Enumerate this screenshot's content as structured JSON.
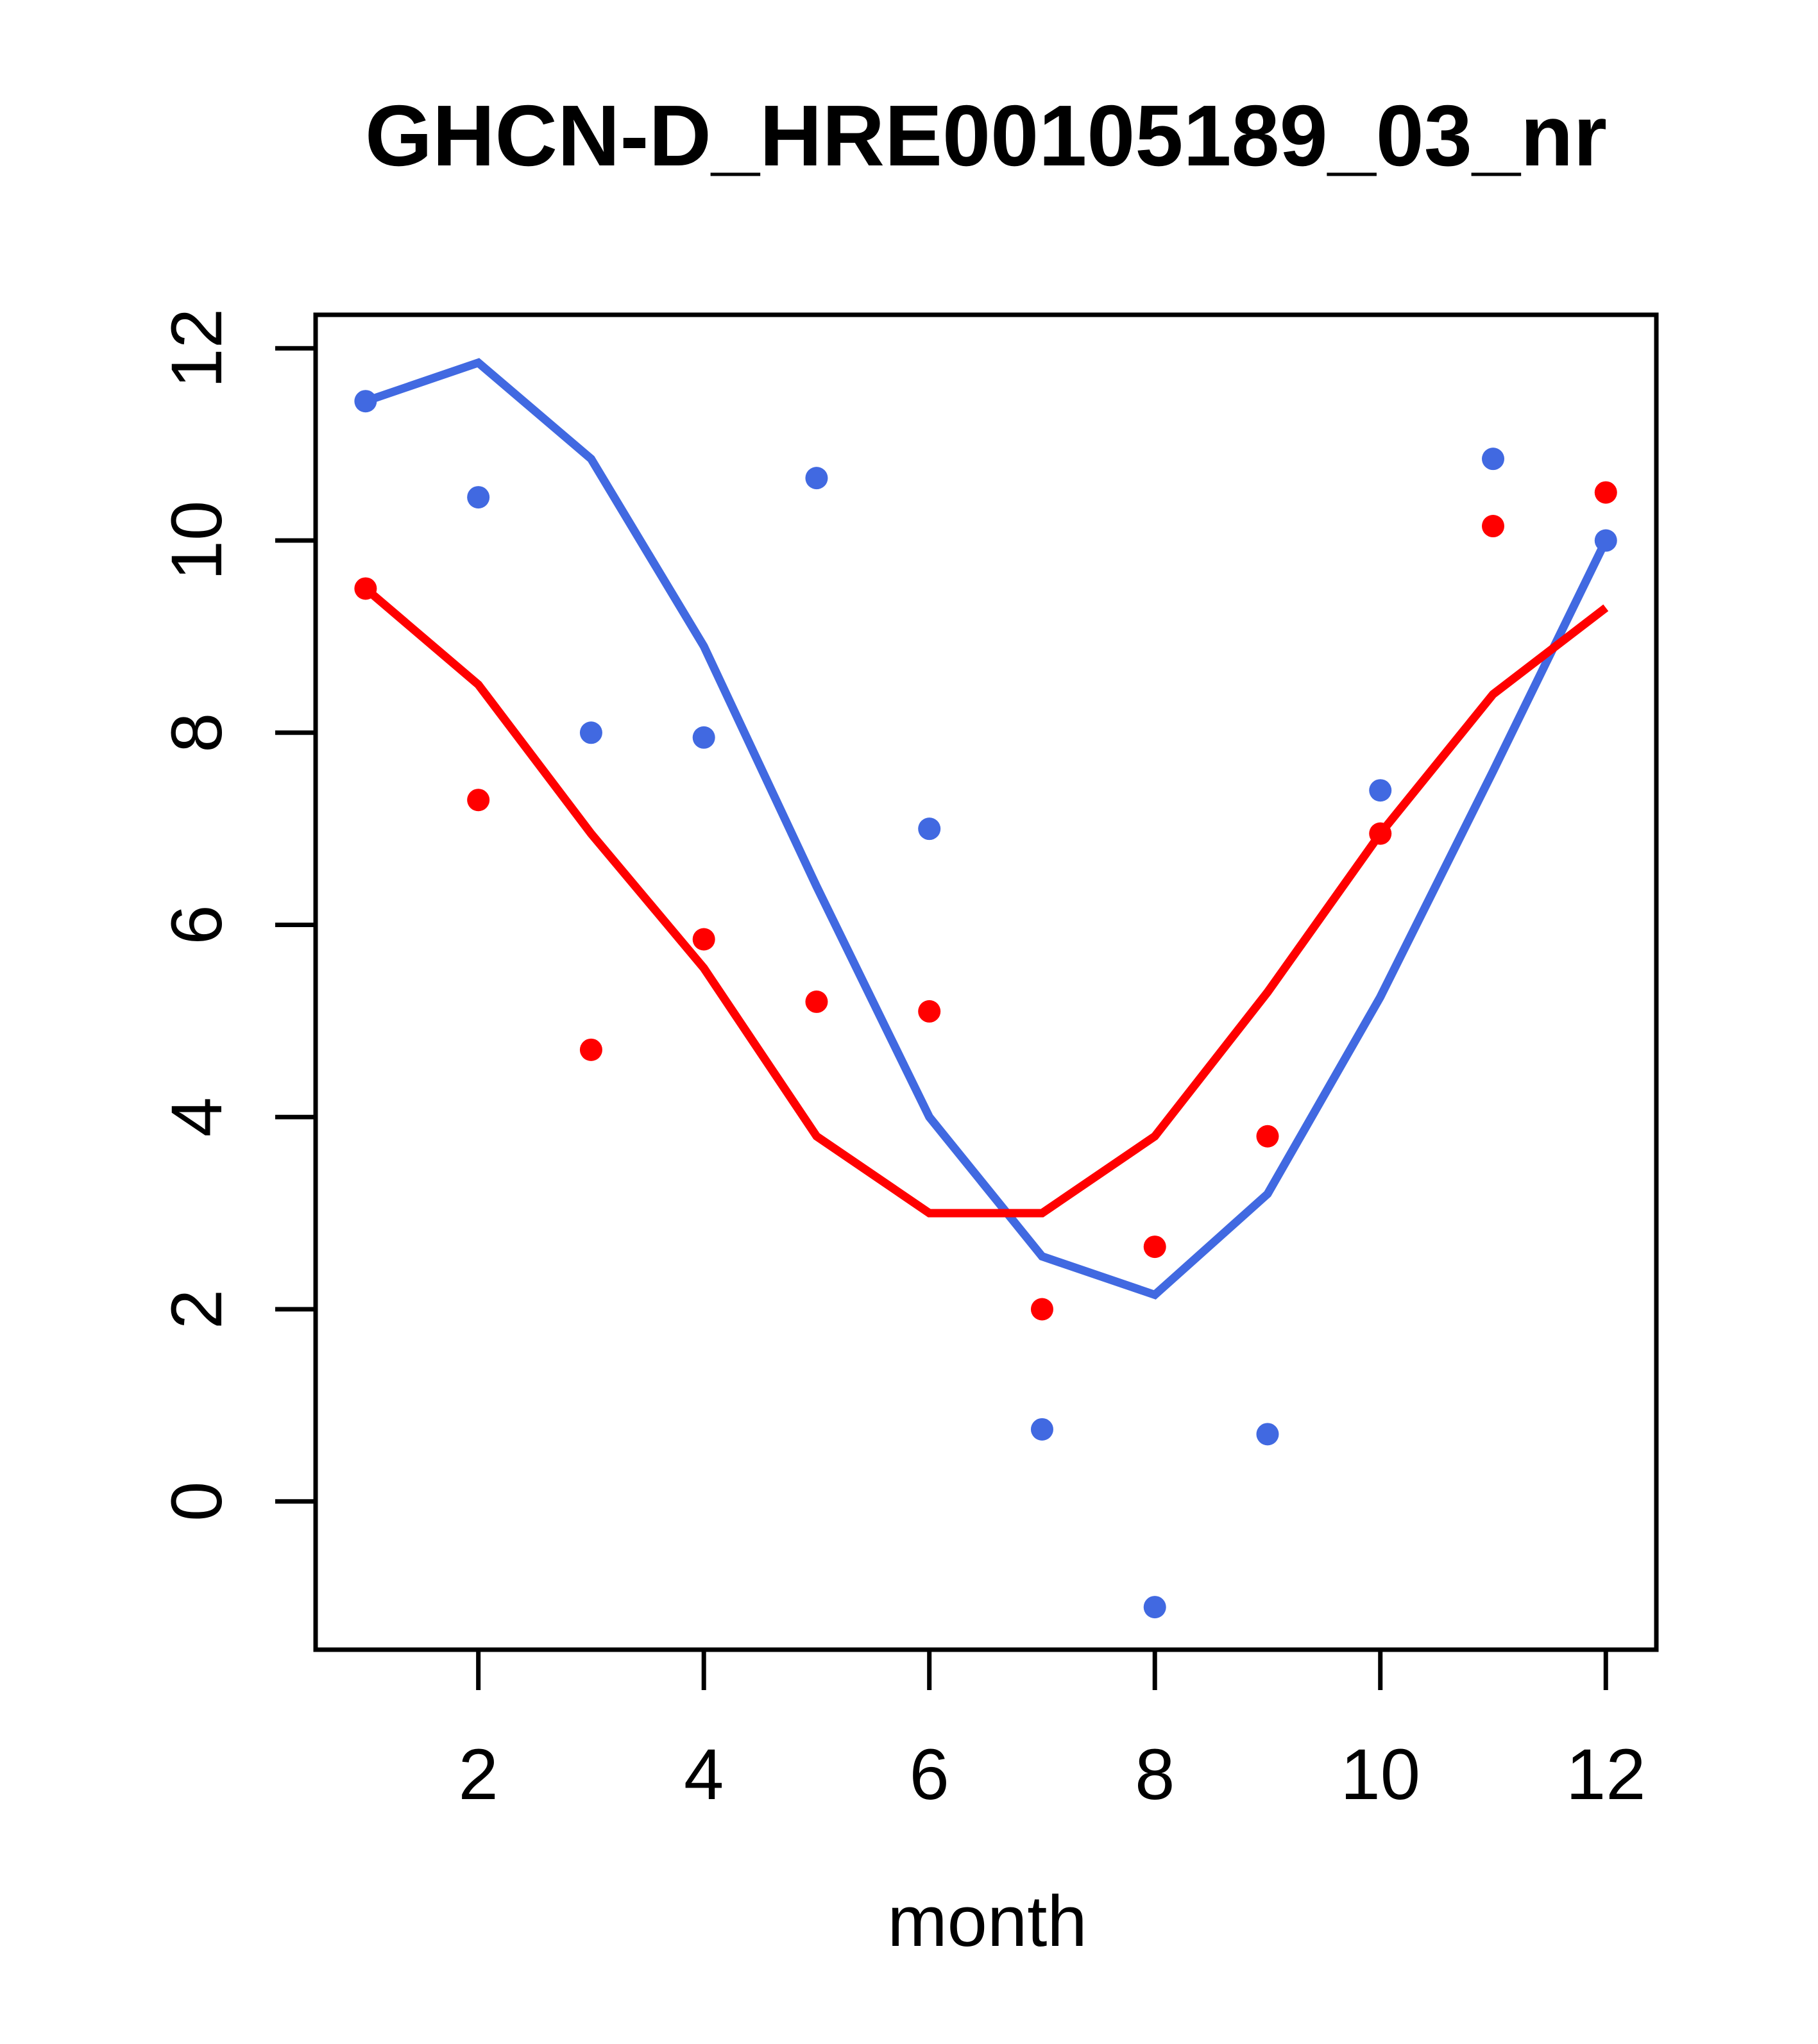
{
  "chart": {
    "title": "GHCN-D_HRE00105189_03_nr",
    "xlabel": "month",
    "accent_colors": {
      "blue": "#4169E1",
      "red": "#FF0000",
      "axis": "#000000",
      "background": "#FFFFFF"
    }
  },
  "chart_data": {
    "type": "scatter",
    "title": "GHCN-D_HRE00105189_03_nr",
    "xlabel": "month",
    "ylabel": "",
    "x": [
      1,
      2,
      3,
      4,
      5,
      6,
      7,
      8,
      9,
      10,
      11,
      12
    ],
    "xticks": [
      2,
      4,
      6,
      8,
      10,
      12
    ],
    "yticks": [
      0,
      2,
      4,
      6,
      8,
      10,
      12
    ],
    "xlim": [
      0.56,
      12.44
    ],
    "ylim": [
      -1.62,
      12.35
    ],
    "grid": false,
    "legend_position": "none",
    "series": [
      {
        "name": "blue-points",
        "render": "scatter",
        "color": "#4169E1",
        "values": [
          11.45,
          10.45,
          8.0,
          7.95,
          10.65,
          7.0,
          0.75,
          -1.1,
          0.7,
          7.4,
          10.85,
          10.0
        ]
      },
      {
        "name": "red-points",
        "render": "scatter",
        "color": "#FF0000",
        "values": [
          9.5,
          7.3,
          4.7,
          5.85,
          5.2,
          5.1,
          2.0,
          2.65,
          3.8,
          6.95,
          10.15,
          10.5
        ]
      },
      {
        "name": "blue-line",
        "render": "line",
        "color": "#4169E1",
        "values": [
          11.45,
          11.85,
          10.85,
          8.9,
          6.4,
          4.0,
          2.55,
          2.15,
          3.2,
          5.25,
          7.6,
          10.0
        ]
      },
      {
        "name": "red-line",
        "render": "line",
        "color": "#FF0000",
        "values": [
          9.5,
          8.5,
          6.95,
          5.55,
          3.8,
          3.0,
          3.0,
          3.8,
          5.3,
          6.95,
          8.4,
          9.3
        ]
      }
    ]
  }
}
